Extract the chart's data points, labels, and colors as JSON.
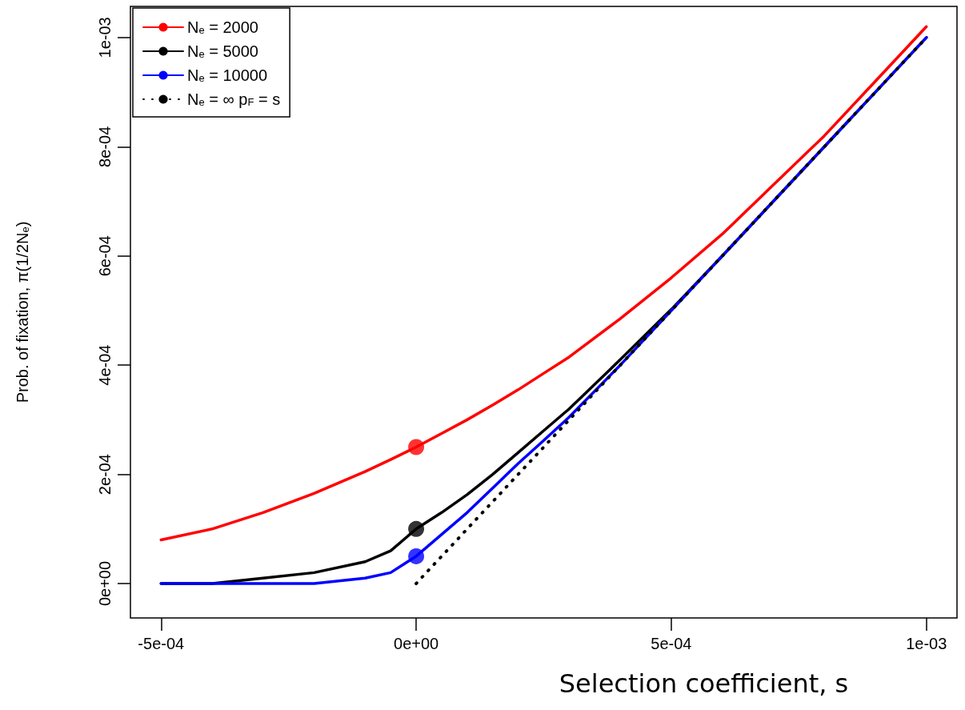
{
  "chart_data": {
    "type": "line",
    "xlabel": "Selection coefficient, s",
    "ylabel": "Prob. of fixation, π(1/2N$_{e}$)",
    "legend": "top left",
    "grid": false,
    "xlim": [
      -0.00056,
      0.00106
    ],
    "ylim": [
      -6.3e-05,
      0.001057
    ],
    "xticks": [
      {
        "value": -0.0005,
        "label": "-5e-04"
      },
      {
        "value": 0,
        "label": "0e+00"
      },
      {
        "value": 0.0005,
        "label": "5e-04"
      },
      {
        "value": 0.001,
        "label": "1e-03"
      }
    ],
    "yticks": [
      {
        "value": 0,
        "label": "0e+00"
      },
      {
        "value": 0.0002,
        "label": "2e-04"
      },
      {
        "value": 0.0004,
        "label": "4e-04"
      },
      {
        "value": 0.0006,
        "label": "6e-04"
      },
      {
        "value": 0.0008,
        "label": "8e-04"
      },
      {
        "value": 0.001,
        "label": "1e-03"
      }
    ],
    "marker": "none",
    "series": [
      {
        "name": "N$_{e}$ = 2000",
        "color": "#ff0000",
        "x": [
          -0.0005,
          -0.0004,
          -0.0003,
          -0.0002,
          -0.0001,
          -5e-05,
          0,
          5e-05,
          0.0001,
          0.00015,
          0.0002,
          0.00025,
          0.0003,
          0.0004,
          0.0005,
          0.0006,
          0.0007,
          0.0008,
          0.0009,
          0.001
        ],
        "values": [
          8e-05,
          0.0001,
          0.00013,
          0.000165,
          0.000205,
          0.000227,
          0.00025,
          0.000275,
          0.0003,
          0.000327,
          0.000355,
          0.000385,
          0.000415,
          0.000485,
          0.00056,
          0.00064,
          0.00073,
          0.00082,
          0.00092,
          0.00102
        ]
      },
      {
        "name": "N$_{e}$ = 5000",
        "color": "#000000",
        "x": [
          -0.0005,
          -0.0004,
          -0.0003,
          -0.0002,
          -0.0001,
          -5e-05,
          0,
          5e-05,
          0.0001,
          0.00015,
          0.0002,
          0.00025,
          0.0003,
          0.0004,
          0.0005,
          0.0006,
          0.0007,
          0.0008,
          0.0009,
          0.001
        ],
        "values": [
          0,
          0,
          1e-05,
          2e-05,
          4e-05,
          6e-05,
          0.0001,
          0.00013,
          0.000163,
          0.0002,
          0.00024,
          0.00028,
          0.00032,
          0.00041,
          0.000502,
          0.0006,
          0.0007,
          0.0008,
          0.0009,
          0.001
        ]
      },
      {
        "name": "N$_{e}$ = 10000",
        "color": "#0000ff",
        "x": [
          -0.0005,
          -0.0004,
          -0.0003,
          -0.0002,
          -0.0001,
          -5e-05,
          0,
          5e-05,
          0.0001,
          0.00015,
          0.0002,
          0.00025,
          0.0003,
          0.0004,
          0.0005,
          0.0006,
          0.0007,
          0.0008,
          0.0009,
          0.001
        ],
        "values": [
          0,
          0,
          0,
          0,
          1e-05,
          2e-05,
          5e-05,
          9e-05,
          0.00013,
          0.000175,
          0.00022,
          0.000262,
          0.000305,
          0.0004,
          0.0005,
          0.0006,
          0.0007,
          0.0008,
          0.0009,
          0.001
        ]
      },
      {
        "name": "N$_{e}$ = ∞ p$_{F}$ = s",
        "color": "#000000",
        "line_style": "dotted",
        "x": [
          0,
          0.001
        ],
        "values": [
          0,
          0.001
        ]
      },
      {
        "type": "scatter",
        "marker": "circle",
        "color": "#ff0000",
        "x": [
          0
        ],
        "values": [
          0.00025
        ]
      },
      {
        "type": "scatter",
        "marker": "circle",
        "color": "#000000",
        "x": [
          0
        ],
        "values": [
          0.0001
        ]
      },
      {
        "type": "scatter",
        "marker": "circle",
        "color": "#0000ff",
        "x": [
          0
        ],
        "values": [
          5e-05
        ]
      }
    ]
  }
}
